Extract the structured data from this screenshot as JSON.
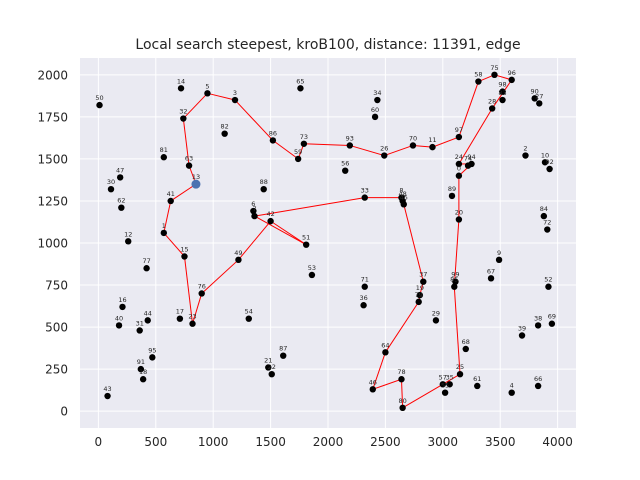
{
  "chart_data": {
    "type": "scatter",
    "title": "Local search steepest, kroB100, distance: 11391, edge",
    "xlabel": "",
    "ylabel": "",
    "xlim": [
      -160,
      4160
    ],
    "ylim": [
      -100,
      2100
    ],
    "xticks": [
      0,
      500,
      1000,
      1500,
      2000,
      2500,
      3000,
      3500,
      4000
    ],
    "yticks": [
      0,
      250,
      500,
      750,
      1000,
      1250,
      1500,
      1750,
      2000
    ],
    "grid": true,
    "colors": {
      "background": "#eaeaf2",
      "grid": "#ffffff",
      "point": "#000000",
      "edge": "#ff0000",
      "start": "#4c72b0"
    },
    "start_point": {
      "x": 850,
      "y": 1350
    },
    "points": [
      {
        "label": "0",
        "x": 3140,
        "y": 1400
      },
      {
        "label": "1",
        "x": 570,
        "y": 1060
      },
      {
        "label": "2",
        "x": 3720,
        "y": 1520
      },
      {
        "label": "3",
        "x": 1190,
        "y": 1850
      },
      {
        "label": "4",
        "x": 3600,
        "y": 110
      },
      {
        "label": "5",
        "x": 950,
        "y": 1890
      },
      {
        "label": "6",
        "x": 1350,
        "y": 1190
      },
      {
        "label": "7",
        "x": 1360,
        "y": 1160
      },
      {
        "label": "8",
        "x": 2640,
        "y": 1270
      },
      {
        "label": "9",
        "x": 3490,
        "y": 900
      },
      {
        "label": "10",
        "x": 3890,
        "y": 1480
      },
      {
        "label": "11",
        "x": 2910,
        "y": 1570
      },
      {
        "label": "12",
        "x": 260,
        "y": 1010
      },
      {
        "label": "13",
        "x": 850,
        "y": 1350
      },
      {
        "label": "14",
        "x": 720,
        "y": 1920
      },
      {
        "label": "15",
        "x": 750,
        "y": 920
      },
      {
        "label": "16",
        "x": 210,
        "y": 620
      },
      {
        "label": "17",
        "x": 710,
        "y": 550
      },
      {
        "label": "18",
        "x": 390,
        "y": 190
      },
      {
        "label": "19",
        "x": 2800,
        "y": 690
      },
      {
        "label": "20",
        "x": 3140,
        "y": 1140
      },
      {
        "label": "21",
        "x": 1480,
        "y": 260
      },
      {
        "label": "22",
        "x": 1510,
        "y": 220
      },
      {
        "label": "23",
        "x": 820,
        "y": 520
      },
      {
        "label": "24",
        "x": 3140,
        "y": 1470
      },
      {
        "label": "25",
        "x": 3150,
        "y": 220
      },
      {
        "label": "26",
        "x": 2490,
        "y": 1520
      },
      {
        "label": "27",
        "x": 3840,
        "y": 1830
      },
      {
        "label": "28",
        "x": 3430,
        "y": 1800
      },
      {
        "label": "29",
        "x": 2940,
        "y": 540
      },
      {
        "label": "30",
        "x": 110,
        "y": 1320
      },
      {
        "label": "31",
        "x": 360,
        "y": 480
      },
      {
        "label": "32",
        "x": 740,
        "y": 1740
      },
      {
        "label": "33",
        "x": 2320,
        "y": 1270
      },
      {
        "label": "34",
        "x": 2430,
        "y": 1850
      },
      {
        "label": "35",
        "x": 3060,
        "y": 160
      },
      {
        "label": "36",
        "x": 2310,
        "y": 630
      },
      {
        "label": "37",
        "x": 2830,
        "y": 770
      },
      {
        "label": "38",
        "x": 3830,
        "y": 510
      },
      {
        "label": "39",
        "x": 3690,
        "y": 450
      },
      {
        "label": "40",
        "x": 180,
        "y": 510
      },
      {
        "label": "41",
        "x": 630,
        "y": 1250
      },
      {
        "label": "42",
        "x": 1500,
        "y": 1130
      },
      {
        "label": "43",
        "x": 80,
        "y": 90
      },
      {
        "label": "44",
        "x": 430,
        "y": 540
      },
      {
        "label": "45",
        "x": 2660,
        "y": 1230
      },
      {
        "label": "46",
        "x": 2390,
        "y": 130
      },
      {
        "label": "47",
        "x": 190,
        "y": 1390
      },
      {
        "label": "48",
        "x": 2650,
        "y": 1250
      },
      {
        "label": "49",
        "x": 1220,
        "y": 900
      },
      {
        "label": "50",
        "x": 10,
        "y": 1820
      },
      {
        "label": "51",
        "x": 1810,
        "y": 990
      },
      {
        "label": "52",
        "x": 3920,
        "y": 740
      },
      {
        "label": "53",
        "x": 1860,
        "y": 810
      },
      {
        "label": "54",
        "x": 1310,
        "y": 550
      },
      {
        "label": "55",
        "x": 3020,
        "y": 110
      },
      {
        "label": "56",
        "x": 2150,
        "y": 1430
      },
      {
        "label": "57",
        "x": 3000,
        "y": 160
      },
      {
        "label": "58",
        "x": 3310,
        "y": 1960
      },
      {
        "label": "59",
        "x": 1740,
        "y": 1500
      },
      {
        "label": "60",
        "x": 2410,
        "y": 1750
      },
      {
        "label": "61",
        "x": 3300,
        "y": 150
      },
      {
        "label": "62",
        "x": 200,
        "y": 1210
      },
      {
        "label": "63",
        "x": 790,
        "y": 1460
      },
      {
        "label": "64",
        "x": 2500,
        "y": 350
      },
      {
        "label": "65",
        "x": 1760,
        "y": 1920
      },
      {
        "label": "66",
        "x": 3830,
        "y": 150
      },
      {
        "label": "67",
        "x": 3420,
        "y": 790
      },
      {
        "label": "68",
        "x": 3200,
        "y": 370
      },
      {
        "label": "69",
        "x": 3950,
        "y": 520
      },
      {
        "label": "70",
        "x": 2740,
        "y": 1580
      },
      {
        "label": "71",
        "x": 2320,
        "y": 740
      },
      {
        "label": "72",
        "x": 3910,
        "y": 1080
      },
      {
        "label": "73",
        "x": 1790,
        "y": 1590
      },
      {
        "label": "74",
        "x": 3220,
        "y": 1460
      },
      {
        "label": "75",
        "x": 3450,
        "y": 2000
      },
      {
        "label": "76",
        "x": 900,
        "y": 700
      },
      {
        "label": "77",
        "x": 420,
        "y": 850
      },
      {
        "label": "78",
        "x": 2640,
        "y": 190
      },
      {
        "label": "79",
        "x": 2790,
        "y": 650
      },
      {
        "label": "80",
        "x": 2650,
        "y": 20
      },
      {
        "label": "81",
        "x": 570,
        "y": 1510
      },
      {
        "label": "82",
        "x": 1100,
        "y": 1650
      },
      {
        "label": "83",
        "x": 3520,
        "y": 1850
      },
      {
        "label": "84",
        "x": 3880,
        "y": 1160
      },
      {
        "label": "85",
        "x": 3100,
        "y": 740
      },
      {
        "label": "86",
        "x": 1520,
        "y": 1610
      },
      {
        "label": "87",
        "x": 1610,
        "y": 330
      },
      {
        "label": "88",
        "x": 1440,
        "y": 1320
      },
      {
        "label": "89",
        "x": 3080,
        "y": 1280
      },
      {
        "label": "90",
        "x": 3800,
        "y": 1860
      },
      {
        "label": "91",
        "x": 370,
        "y": 250
      },
      {
        "label": "92",
        "x": 3930,
        "y": 1440
      },
      {
        "label": "93",
        "x": 2190,
        "y": 1580
      },
      {
        "label": "94",
        "x": 3250,
        "y": 1470
      },
      {
        "label": "95",
        "x": 470,
        "y": 320
      },
      {
        "label": "96",
        "x": 3600,
        "y": 1970
      },
      {
        "label": "97",
        "x": 3140,
        "y": 1630
      },
      {
        "label": "98",
        "x": 3520,
        "y": 1900
      },
      {
        "label": "99",
        "x": 3110,
        "y": 770
      }
    ],
    "edges": [
      [
        "13",
        "63"
      ],
      [
        "63",
        "32"
      ],
      [
        "32",
        "5"
      ],
      [
        "5",
        "3"
      ],
      [
        "3",
        "86"
      ],
      [
        "86",
        "59"
      ],
      [
        "59",
        "73"
      ],
      [
        "73",
        "93"
      ],
      [
        "93",
        "26"
      ],
      [
        "26",
        "70"
      ],
      [
        "70",
        "11"
      ],
      [
        "11",
        "97"
      ],
      [
        "97",
        "58"
      ],
      [
        "58",
        "75"
      ],
      [
        "75",
        "96"
      ],
      [
        "96",
        "28"
      ],
      [
        "28",
        "24"
      ],
      [
        "24",
        "94"
      ],
      [
        "94",
        "0"
      ],
      [
        "0",
        "20"
      ],
      [
        "20",
        "85"
      ],
      [
        "85",
        "25"
      ],
      [
        "25",
        "57"
      ],
      [
        "57",
        "80"
      ],
      [
        "80",
        "78"
      ],
      [
        "78",
        "46"
      ],
      [
        "46",
        "64"
      ],
      [
        "64",
        "79"
      ],
      [
        "79",
        "19"
      ],
      [
        "19",
        "37"
      ],
      [
        "37",
        "45"
      ],
      [
        "45",
        "8"
      ],
      [
        "8",
        "33"
      ],
      [
        "33",
        "7"
      ],
      [
        "7",
        "6"
      ],
      [
        "7",
        "51"
      ],
      [
        "51",
        "42"
      ],
      [
        "42",
        "49"
      ],
      [
        "49",
        "76"
      ],
      [
        "76",
        "23"
      ],
      [
        "23",
        "15"
      ],
      [
        "15",
        "1"
      ],
      [
        "1",
        "41"
      ],
      [
        "41",
        "13"
      ]
    ]
  }
}
